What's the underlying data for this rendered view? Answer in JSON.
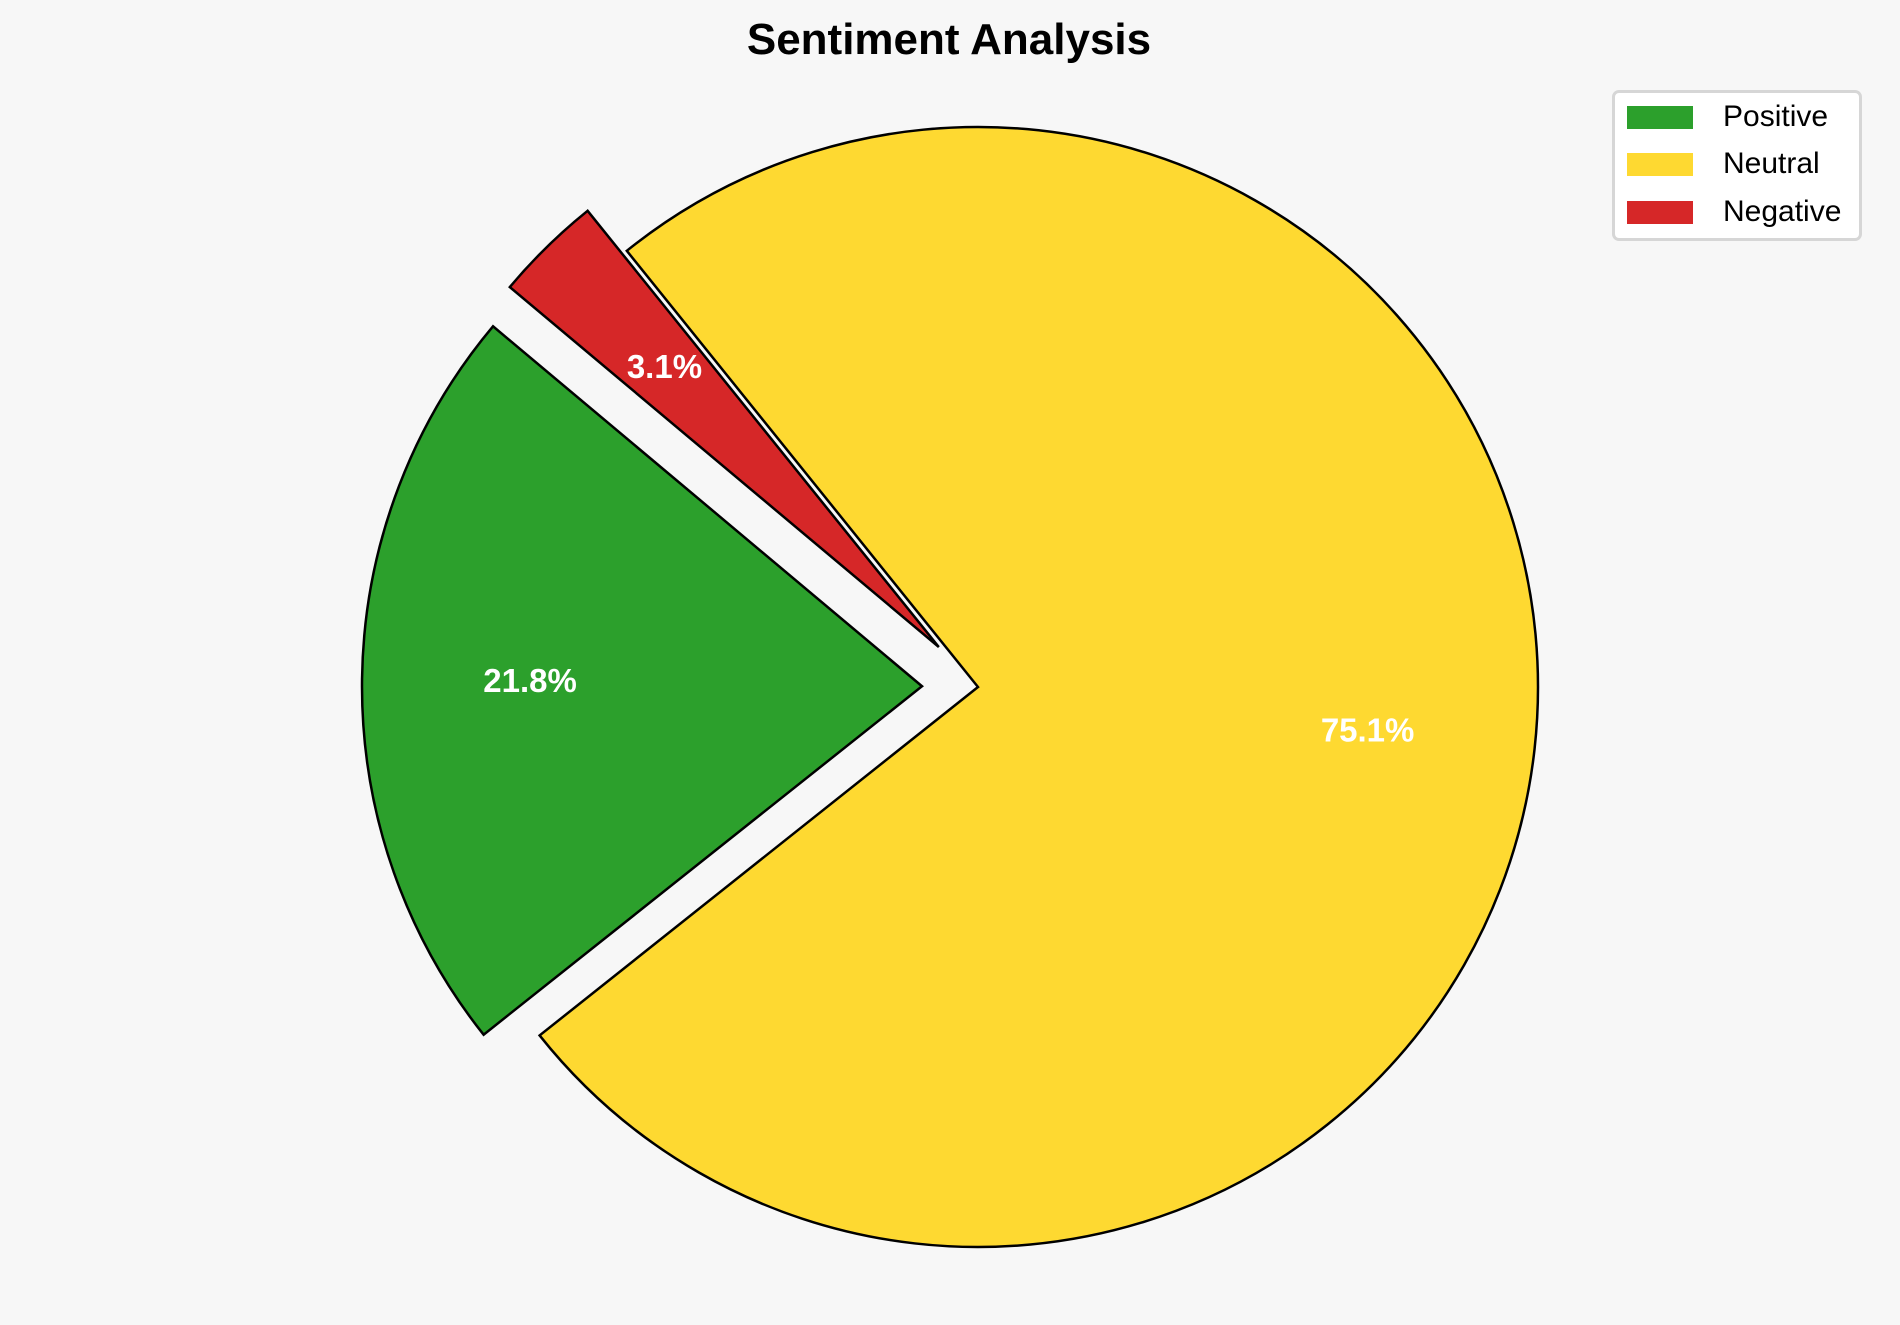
{
  "chart_data": {
    "type": "pie",
    "title": "Sentiment Analysis",
    "categories": [
      "Positive",
      "Neutral",
      "Negative"
    ],
    "values": [
      21.8,
      75.1,
      3.1
    ],
    "labels": [
      "21.8%",
      "75.1%",
      "3.1%"
    ],
    "colors": [
      "#2ca02c",
      "#fed931",
      "#d62728"
    ],
    "explode": [
      0.1,
      0,
      0.1
    ],
    "start_angle": 140,
    "edge_color": "#000000",
    "label_color": "#ffffff",
    "legend_placement": "top-right"
  }
}
